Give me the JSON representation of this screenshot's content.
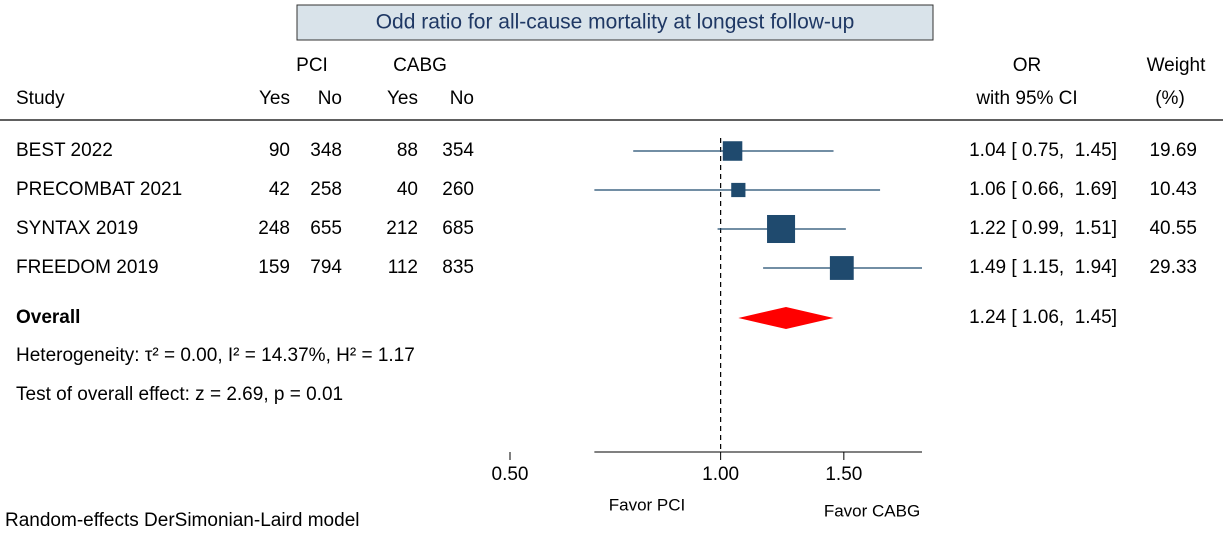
{
  "chart_data": {
    "type": "forest",
    "title": "Odd ratio for all-cause mortality at longest follow-up",
    "header": {
      "study": "Study",
      "group_a": "PCI",
      "group_b": "CABG",
      "columns": [
        "Yes",
        "No",
        "Yes",
        "No"
      ],
      "or": "OR",
      "ci": "with 95% CI",
      "weight": "Weight",
      "weight_unit": "(%)"
    },
    "categories": [
      "BEST 2022",
      "PRECOMBAT 2021",
      "SYNTAX 2019",
      "FREEDOM 2019"
    ],
    "counts": [
      [
        90,
        348,
        88,
        354
      ],
      [
        42,
        258,
        40,
        260
      ],
      [
        248,
        655,
        212,
        685
      ],
      [
        159,
        794,
        112,
        835
      ]
    ],
    "or": [
      1.04,
      1.06,
      1.22,
      1.49
    ],
    "lower": [
      0.75,
      0.66,
      0.99,
      1.15
    ],
    "upper": [
      1.45,
      1.69,
      1.51,
      1.94
    ],
    "value_labels": [
      "1.04 [ 0.75,  1.45]",
      "1.06 [ 0.66,  1.69]",
      "1.22 [ 0.99,  1.51]",
      "1.49 [ 1.15,  1.94]"
    ],
    "weights": [
      19.69,
      10.43,
      40.55,
      29.33
    ],
    "color": "#1f4a6e",
    "overall": {
      "name": "Overall",
      "or": 1.24,
      "lower": 1.06,
      "upper": 1.45,
      "label": "1.24 [ 1.06,  1.45]",
      "color": "#ff0000"
    },
    "heterogeneity": "Heterogeneity: τ² = 0.00, I² = 14.37%, H² = 1.17",
    "test": "Test of overall effect: z = 2.69, p = 0.01",
    "favor_left": "Favor PCI",
    "favor_right": "Favor CABG",
    "footnote": "Random-effects DerSimonian-Laird model",
    "log_x": true,
    "reference": 1,
    "xlim": [
      0.5,
      1.94
    ],
    "xticks": [
      {
        "value": 0.5,
        "label": "0.50"
      },
      {
        "value": 1,
        "label": "1.00"
      },
      {
        "value": 1.5,
        "label": "1.50"
      }
    ]
  }
}
